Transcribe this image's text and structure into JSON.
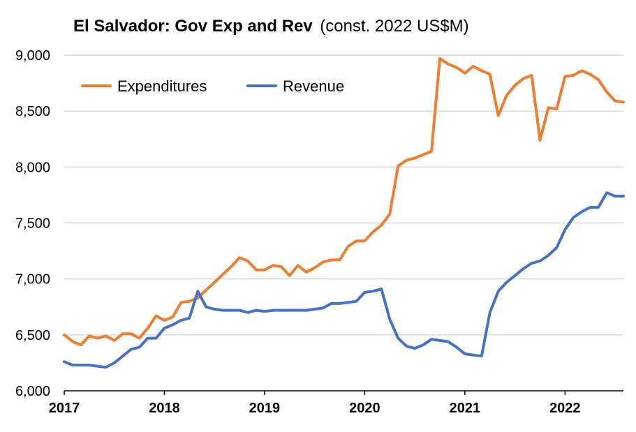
{
  "chart_data": {
    "type": "line",
    "title": "El Salvador: Gov Exp and Rev",
    "subtitle": "(const. 2022 US$M)",
    "xlabel": "",
    "ylabel": "",
    "ylim": [
      6000,
      9000
    ],
    "yticks": [
      6000,
      6500,
      7000,
      7500,
      8000,
      8500,
      9000
    ],
    "ytick_labels": [
      "6,000",
      "6,500",
      "7,000",
      "7,500",
      "8,000",
      "8,500",
      "9,000"
    ],
    "xlim": [
      2017.0,
      2022.5833
    ],
    "xticks": [
      2017,
      2018,
      2019,
      2020,
      2021,
      2022
    ],
    "xtick_labels": [
      "2017",
      "2018",
      "2019",
      "2020",
      "2021",
      "2022"
    ],
    "grid": true,
    "legend_position": "top-left",
    "start_year": 2017,
    "frequency": "monthly",
    "series": [
      {
        "name": "Expenditures",
        "color": "#ED7D31",
        "values": [
          6500,
          6440,
          6410,
          6490,
          6470,
          6490,
          6450,
          6510,
          6510,
          6470,
          6560,
          6670,
          6630,
          6660,
          6790,
          6800,
          6830,
          6900,
          6970,
          7040,
          7110,
          7190,
          7160,
          7080,
          7080,
          7120,
          7110,
          7030,
          7120,
          7060,
          7100,
          7150,
          7170,
          7170,
          7290,
          7340,
          7340,
          7420,
          7480,
          7580,
          8010,
          8060,
          8080,
          8110,
          8140,
          8970,
          8920,
          8890,
          8840,
          8900,
          8860,
          8830,
          8460,
          8640,
          8730,
          8790,
          8820,
          8240,
          8530,
          8520,
          8810,
          8820,
          8860,
          8830,
          8780,
          8670,
          8590,
          8580
        ]
      },
      {
        "name": "Revenue",
        "color": "#4472C4",
        "values": [
          6260,
          6230,
          6230,
          6230,
          6220,
          6210,
          6250,
          6310,
          6370,
          6390,
          6470,
          6470,
          6560,
          6590,
          6630,
          6650,
          6890,
          6750,
          6730,
          6720,
          6720,
          6720,
          6700,
          6720,
          6710,
          6720,
          6720,
          6720,
          6720,
          6720,
          6730,
          6740,
          6780,
          6780,
          6790,
          6800,
          6880,
          6890,
          6910,
          6640,
          6470,
          6400,
          6380,
          6410,
          6460,
          6450,
          6440,
          6390,
          6330,
          6320,
          6310,
          6700,
          6890,
          6970,
          7030,
          7090,
          7140,
          7160,
          7210,
          7280,
          7440,
          7550,
          7600,
          7640,
          7640,
          7770,
          7740,
          7740
        ]
      }
    ]
  }
}
